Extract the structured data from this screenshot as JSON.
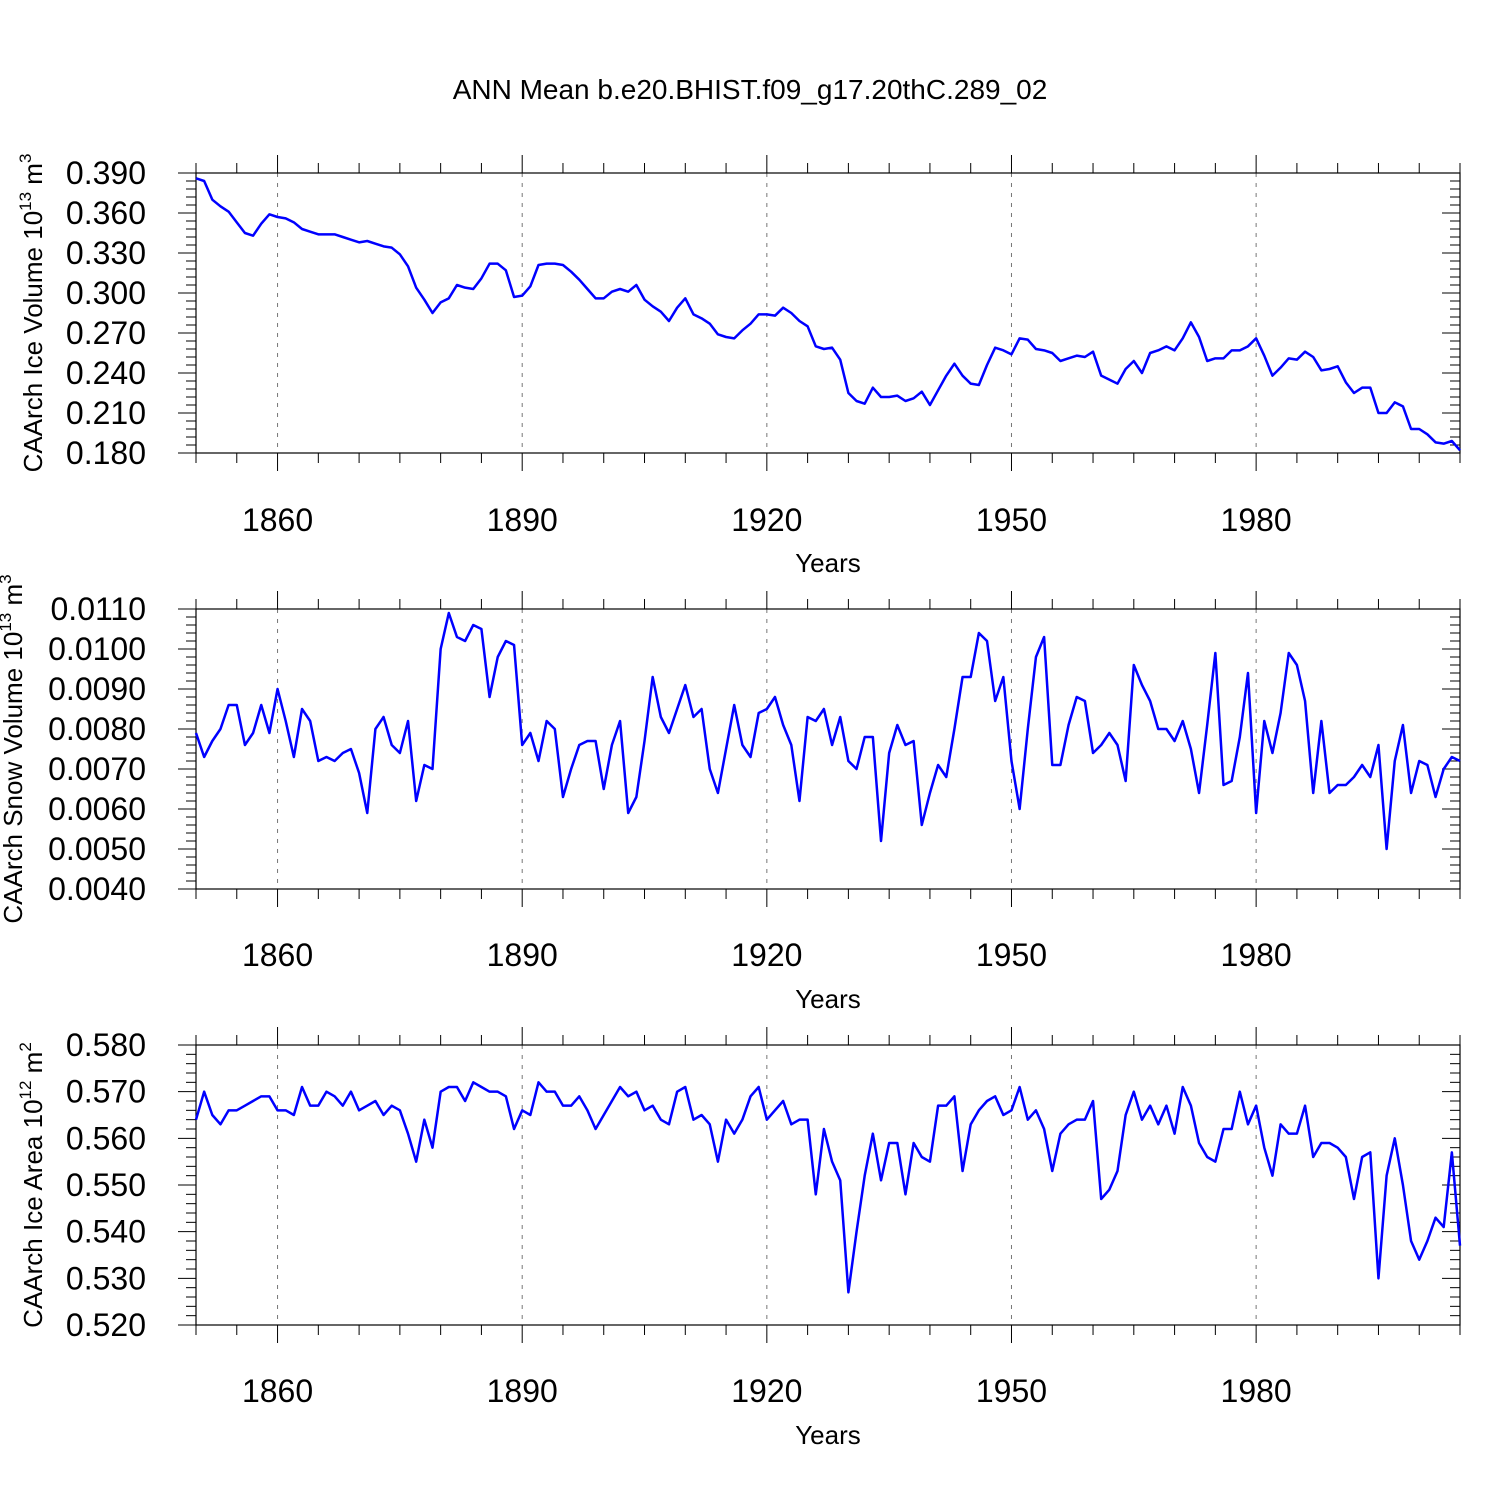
{
  "title": "ANN Mean b.e20.BHIST.f09_g17.20thC.289_02",
  "colors": {
    "series": "#0000ff",
    "axis": "#000000",
    "grid": "#777777"
  },
  "chart_data": [
    {
      "type": "line",
      "ylabel": "CAArch Ice Volume 10",
      "ylabel_exp": "13",
      "ylabel_unit": " m",
      "ylabel_unit_exp": "3",
      "xlabel": "Years",
      "xlim": [
        1850,
        2005
      ],
      "ylim": [
        0.18,
        0.39
      ],
      "yticks": [
        "0.390",
        "0.360",
        "0.330",
        "0.300",
        "0.270",
        "0.240",
        "0.210",
        "0.180"
      ],
      "ytick_values": [
        0.39,
        0.36,
        0.33,
        0.3,
        0.27,
        0.24,
        0.21,
        0.18
      ],
      "xticks": [
        "1860",
        "1890",
        "1920",
        "1950",
        "1980"
      ],
      "xtick_values": [
        1860,
        1890,
        1920,
        1950,
        1980
      ],
      "grid": "vertical dashed at major x ticks",
      "x_start": 1850,
      "values": [
        0.386,
        0.384,
        0.37,
        0.365,
        0.361,
        0.353,
        0.345,
        0.343,
        0.352,
        0.359,
        0.357,
        0.356,
        0.353,
        0.348,
        0.346,
        0.344,
        0.344,
        0.344,
        0.342,
        0.34,
        0.338,
        0.339,
        0.337,
        0.335,
        0.334,
        0.329,
        0.32,
        0.304,
        0.295,
        0.285,
        0.293,
        0.296,
        0.306,
        0.304,
        0.303,
        0.311,
        0.322,
        0.322,
        0.317,
        0.297,
        0.298,
        0.305,
        0.321,
        0.322,
        0.322,
        0.321,
        0.316,
        0.31,
        0.303,
        0.296,
        0.296,
        0.301,
        0.303,
        0.301,
        0.306,
        0.295,
        0.29,
        0.286,
        0.279,
        0.289,
        0.296,
        0.284,
        0.281,
        0.277,
        0.269,
        0.267,
        0.266,
        0.272,
        0.277,
        0.284,
        0.284,
        0.283,
        0.289,
        0.285,
        0.279,
        0.275,
        0.26,
        0.258,
        0.259,
        0.25,
        0.225,
        0.219,
        0.217,
        0.229,
        0.222,
        0.222,
        0.223,
        0.219,
        0.221,
        0.226,
        0.216,
        0.227,
        0.238,
        0.247,
        0.238,
        0.232,
        0.231,
        0.246,
        0.259,
        0.257,
        0.254,
        0.266,
        0.265,
        0.258,
        0.257,
        0.255,
        0.249,
        0.251,
        0.253,
        0.252,
        0.256,
        0.238,
        0.235,
        0.232,
        0.243,
        0.249,
        0.24,
        0.255,
        0.257,
        0.26,
        0.257,
        0.266,
        0.278,
        0.267,
        0.249,
        0.251,
        0.251,
        0.257,
        0.257,
        0.26,
        0.266,
        0.253,
        0.238,
        0.244,
        0.251,
        0.25,
        0.256,
        0.252,
        0.242,
        0.243,
        0.245,
        0.233,
        0.225,
        0.229,
        0.229,
        0.21,
        0.21,
        0.218,
        0.215,
        0.198,
        0.198,
        0.194,
        0.188,
        0.187,
        0.189,
        0.182
      ]
    },
    {
      "type": "line",
      "ylabel": "CAArch Snow Volume 10",
      "ylabel_exp": "13",
      "ylabel_unit": " m",
      "ylabel_unit_exp": "3",
      "xlabel": "Years",
      "xlim": [
        1850,
        2005
      ],
      "ylim": [
        0.004,
        0.011
      ],
      "yticks": [
        "0.0110",
        "0.0100",
        "0.0090",
        "0.0080",
        "0.0070",
        "0.0060",
        "0.0050",
        "0.0040"
      ],
      "ytick_values": [
        0.011,
        0.01,
        0.009,
        0.008,
        0.007,
        0.006,
        0.005,
        0.004
      ],
      "xticks": [
        "1860",
        "1890",
        "1920",
        "1950",
        "1980"
      ],
      "xtick_values": [
        1860,
        1890,
        1920,
        1950,
        1980
      ],
      "grid": "vertical dashed at major x ticks",
      "x_start": 1850,
      "values": [
        0.0079,
        0.0073,
        0.0077,
        0.008,
        0.0086,
        0.0086,
        0.0076,
        0.0079,
        0.0086,
        0.0079,
        0.009,
        0.0082,
        0.0073,
        0.0085,
        0.0082,
        0.0072,
        0.0073,
        0.0072,
        0.0074,
        0.0075,
        0.0069,
        0.0059,
        0.008,
        0.0083,
        0.0076,
        0.0074,
        0.0082,
        0.0062,
        0.0071,
        0.007,
        0.01,
        0.0109,
        0.0103,
        0.0102,
        0.0106,
        0.0105,
        0.0088,
        0.0098,
        0.0102,
        0.0101,
        0.0076,
        0.0079,
        0.0072,
        0.0082,
        0.008,
        0.0063,
        0.007,
        0.0076,
        0.0077,
        0.0077,
        0.0065,
        0.0076,
        0.0082,
        0.0059,
        0.0063,
        0.0077,
        0.0093,
        0.0083,
        0.0079,
        0.0085,
        0.0091,
        0.0083,
        0.0085,
        0.007,
        0.0064,
        0.0075,
        0.0086,
        0.0076,
        0.0073,
        0.0084,
        0.0085,
        0.0088,
        0.0081,
        0.0076,
        0.0062,
        0.0083,
        0.0082,
        0.0085,
        0.0076,
        0.0083,
        0.0072,
        0.007,
        0.0078,
        0.0078,
        0.0052,
        0.0074,
        0.0081,
        0.0076,
        0.0077,
        0.0056,
        0.0064,
        0.0071,
        0.0068,
        0.008,
        0.0093,
        0.0093,
        0.0104,
        0.0102,
        0.0087,
        0.0093,
        0.0072,
        0.006,
        0.008,
        0.0098,
        0.0103,
        0.0071,
        0.0071,
        0.0081,
        0.0088,
        0.0087,
        0.0074,
        0.0076,
        0.0079,
        0.0076,
        0.0067,
        0.0096,
        0.0091,
        0.0087,
        0.008,
        0.008,
        0.0077,
        0.0082,
        0.0075,
        0.0064,
        0.0081,
        0.0099,
        0.0066,
        0.0067,
        0.0078,
        0.0094,
        0.0059,
        0.0082,
        0.0074,
        0.0084,
        0.0099,
        0.0096,
        0.0087,
        0.0064,
        0.0082,
        0.0064,
        0.0066,
        0.0066,
        0.0068,
        0.0071,
        0.0068,
        0.0076,
        0.005,
        0.0072,
        0.0081,
        0.0064,
        0.0072,
        0.0071,
        0.0063,
        0.007,
        0.0073,
        0.0072
      ]
    },
    {
      "type": "line",
      "ylabel": "CAArch Ice Area 10",
      "ylabel_exp": "12",
      "ylabel_unit": " m",
      "ylabel_unit_exp": "2",
      "xlabel": "Years",
      "xlim": [
        1850,
        2005
      ],
      "ylim": [
        0.52,
        0.58
      ],
      "yticks": [
        "0.580",
        "0.570",
        "0.560",
        "0.550",
        "0.540",
        "0.530",
        "0.520"
      ],
      "ytick_values": [
        0.58,
        0.57,
        0.56,
        0.55,
        0.54,
        0.53,
        0.52
      ],
      "xticks": [
        "1860",
        "1890",
        "1920",
        "1950",
        "1980"
      ],
      "xtick_values": [
        1860,
        1890,
        1920,
        1950,
        1980
      ],
      "grid": "vertical dashed at major x ticks",
      "x_start": 1850,
      "values": [
        0.564,
        0.57,
        0.565,
        0.563,
        0.566,
        0.566,
        0.567,
        0.568,
        0.569,
        0.569,
        0.566,
        0.566,
        0.565,
        0.571,
        0.567,
        0.567,
        0.57,
        0.569,
        0.567,
        0.57,
        0.566,
        0.567,
        0.568,
        0.565,
        0.567,
        0.566,
        0.561,
        0.555,
        0.564,
        0.558,
        0.57,
        0.571,
        0.571,
        0.568,
        0.572,
        0.571,
        0.57,
        0.57,
        0.569,
        0.562,
        0.566,
        0.565,
        0.572,
        0.57,
        0.57,
        0.567,
        0.567,
        0.569,
        0.566,
        0.562,
        0.565,
        0.568,
        0.571,
        0.569,
        0.57,
        0.566,
        0.567,
        0.564,
        0.563,
        0.57,
        0.571,
        0.564,
        0.565,
        0.563,
        0.555,
        0.564,
        0.561,
        0.564,
        0.569,
        0.571,
        0.564,
        0.566,
        0.568,
        0.563,
        0.564,
        0.564,
        0.548,
        0.562,
        0.555,
        0.551,
        0.527,
        0.54,
        0.552,
        0.561,
        0.551,
        0.559,
        0.559,
        0.548,
        0.559,
        0.556,
        0.555,
        0.567,
        0.567,
        0.569,
        0.553,
        0.563,
        0.566,
        0.568,
        0.569,
        0.565,
        0.566,
        0.571,
        0.564,
        0.566,
        0.562,
        0.553,
        0.561,
        0.563,
        0.564,
        0.564,
        0.568,
        0.547,
        0.549,
        0.553,
        0.565,
        0.57,
        0.564,
        0.567,
        0.563,
        0.567,
        0.561,
        0.571,
        0.567,
        0.559,
        0.556,
        0.555,
        0.562,
        0.562,
        0.57,
        0.563,
        0.567,
        0.558,
        0.552,
        0.563,
        0.561,
        0.561,
        0.567,
        0.556,
        0.559,
        0.559,
        0.558,
        0.556,
        0.547,
        0.556,
        0.557,
        0.53,
        0.552,
        0.56,
        0.55,
        0.538,
        0.534,
        0.538,
        0.543,
        0.541,
        0.557,
        0.537
      ]
    }
  ]
}
